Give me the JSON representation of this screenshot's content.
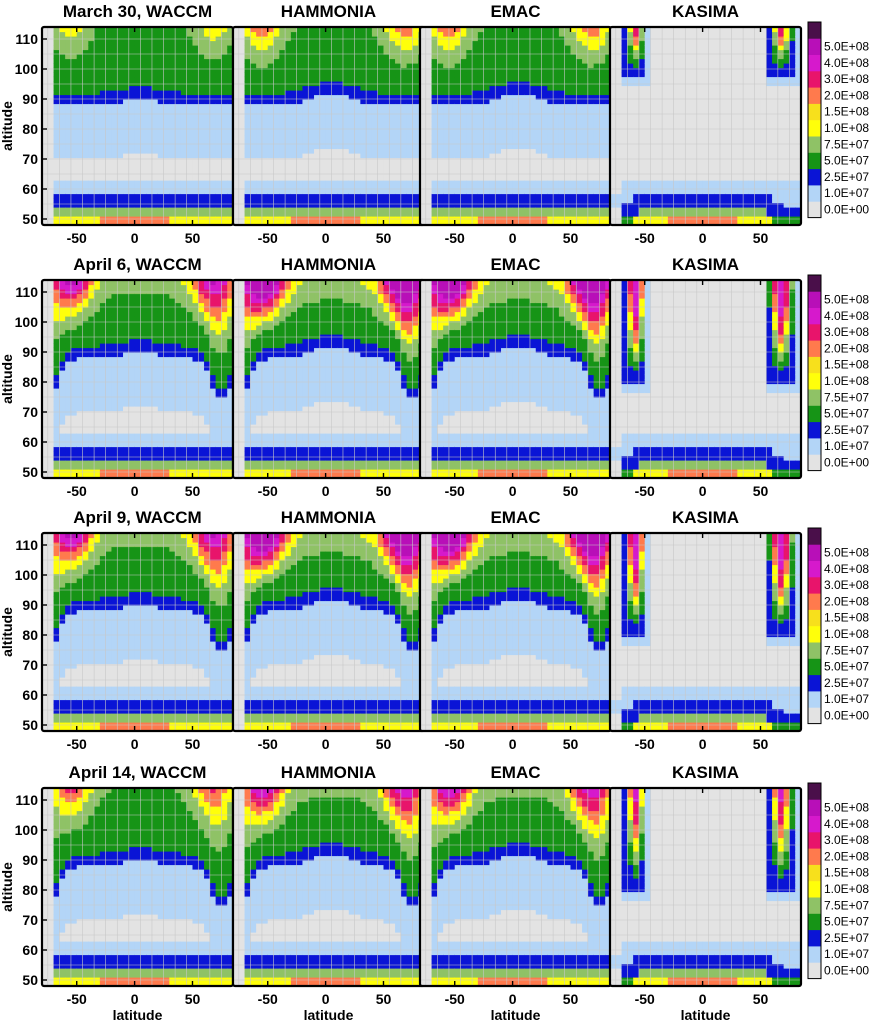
{
  "chart_data": {
    "type": "heatmap",
    "rows": [
      {
        "date": "March 30",
        "title": "March 30, WACCM"
      },
      {
        "date": "April 6",
        "title": "April 6, WACCM"
      },
      {
        "date": "April 9",
        "title": "April 9, WACCM"
      },
      {
        "date": "April 14",
        "title": "April 14, WACCM"
      }
    ],
    "models": [
      {
        "name": "WACCM"
      },
      {
        "name": "HAMMONIA"
      },
      {
        "name": "EMAC"
      },
      {
        "name": "KASIMA"
      }
    ],
    "xlabel": "latitude",
    "ylabel": "altitude",
    "xlim": [
      -80,
      85
    ],
    "ylim": [
      48,
      114
    ],
    "xticks": [
      -50,
      0,
      50
    ],
    "yticks": [
      50,
      60,
      70,
      80,
      90,
      100,
      110
    ],
    "grid": true,
    "legend_position": "right",
    "colorbar": {
      "levels": [
        "0.0E+00",
        "1.0E+07",
        "2.5E+07",
        "5.0E+07",
        "7.5E+07",
        "1.0E+08",
        "1.5E+08",
        "2.0E+08",
        "3.0E+08",
        "4.0E+08",
        "5.0E+08"
      ],
      "colors": [
        "#e3e3e3",
        "#b3d5f7",
        "#0a14d6",
        "#169416",
        "#8fc266",
        "#ffff0a",
        "#f7e01c",
        "#ff7a4d",
        "#e8146b",
        "#d619cc",
        "#b80fb8",
        "#4a0f4a"
      ]
    },
    "fields": {
      "WACCM": [
        {
          "alt_top": 111,
          "alt_bot": 96,
          "lat_range": [
            -72,
            85
          ],
          "level": "5.0E+07"
        },
        {
          "alt_top": 96,
          "alt_bot": 91,
          "lat_range": [
            -72,
            85
          ],
          "level": "2.5E+07"
        },
        {
          "alt_top": 56,
          "alt_bot": 53,
          "lat_range": [
            -72,
            85
          ],
          "level": "2.5E+07"
        },
        {
          "alt_top": 51,
          "alt_bot": 49,
          "lat_range": [
            -72,
            85
          ],
          "level": "1.0E+08"
        }
      ],
      "KASIMA": [
        {
          "alt_top": 110,
          "alt_bot": 92,
          "lat_range": [
            -72,
            -48
          ],
          "level": "3.0E+08"
        },
        {
          "alt_top": 110,
          "alt_bot": 88,
          "lat_range": [
            55,
            85
          ],
          "level": "3.0E+08"
        },
        {
          "alt_top": 52,
          "alt_bot": 49,
          "lat_range": [
            -20,
            20
          ],
          "level": "2.0E+08"
        }
      ]
    }
  }
}
